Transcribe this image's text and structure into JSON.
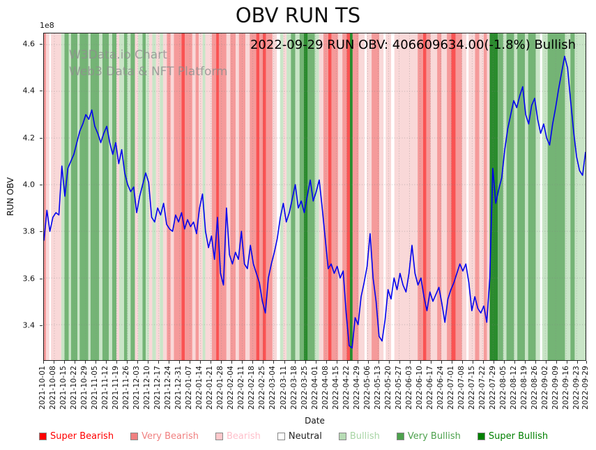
{
  "title": "OBV RUN TS",
  "annotation": "2022-09-29 RUN OBV: 406609634.00(-1.8%) Bullish",
  "watermark": {
    "line1": "W3Data.io Chart",
    "line2": "Web3 Data & NFT Platform"
  },
  "axes": {
    "y_label": "RUN OBV",
    "x_label": "Date",
    "y_offset_label": "1e8",
    "y_ticks": [
      "3.4",
      "3.6",
      "3.8",
      "4.0",
      "4.2",
      "4.4",
      "4.6"
    ],
    "x_tick_labels": [
      "2021-10-01",
      "2021-10-08",
      "2021-10-15",
      "2021-10-22",
      "2021-10-29",
      "2021-11-05",
      "2021-11-12",
      "2021-11-19",
      "2021-11-26",
      "2021-12-03",
      "2021-12-10",
      "2021-12-17",
      "2021-12-24",
      "2021-12-31",
      "2022-01-07",
      "2022-01-14",
      "2022-01-21",
      "2022-01-28",
      "2022-02-04",
      "2022-02-11",
      "2022-02-18",
      "2022-02-25",
      "2022-03-04",
      "2022-03-11",
      "2022-03-18",
      "2022-03-25",
      "2022-04-01",
      "2022-04-08",
      "2022-04-15",
      "2022-04-22",
      "2022-04-29",
      "2022-05-06",
      "2022-05-13",
      "2022-05-20",
      "2022-05-27",
      "2022-06-03",
      "2022-06-10",
      "2022-06-17",
      "2022-06-24",
      "2022-07-01",
      "2022-07-08",
      "2022-07-15",
      "2022-07-22",
      "2022-07-29",
      "2022-08-05",
      "2022-08-12",
      "2022-08-19",
      "2022-08-26",
      "2022-09-02",
      "2022-09-09",
      "2022-09-16",
      "2022-09-23",
      "2022-09-29"
    ]
  },
  "legend": {
    "items": [
      {
        "label": "Super Bearish",
        "color": "#ff0000",
        "text_color": "#ff0000"
      },
      {
        "label": "Very Bearish",
        "color": "#f08080",
        "text_color": "#f08080"
      },
      {
        "label": "Bearish",
        "color": "#ffc8cb",
        "text_color": "#ffc0cb"
      },
      {
        "label": "Neutral",
        "color": "#ffffff",
        "text_color": "#222222"
      },
      {
        "label": "Bullish",
        "color": "#b7dcb5",
        "text_color": "#a8d5a5"
      },
      {
        "label": "Very Bullish",
        "color": "#4da14d",
        "text_color": "#4da14d"
      },
      {
        "label": "Super Bullish",
        "color": "#008000",
        "text_color": "#008000"
      }
    ]
  },
  "chart_data": {
    "type": "line",
    "title": "OBV RUN TS",
    "xlabel": "Date",
    "ylabel": "RUN OBV",
    "scale_note": "values in units of 1e8",
    "x_start": "2021-10-01",
    "x_end": "2022-09-29",
    "ylim": [
      3.248,
      4.648
    ],
    "grid": true,
    "legend_position": "bottom",
    "line_color": "#0000ee",
    "current": {
      "date": "2022-09-29",
      "value": "406609634.00",
      "change_pct": "-1.8%",
      "signal": "Bullish"
    },
    "values": [
      3.76,
      3.89,
      3.8,
      3.86,
      3.88,
      3.87,
      4.08,
      3.95,
      4.07,
      4.1,
      4.13,
      4.18,
      4.23,
      4.26,
      4.3,
      4.28,
      4.32,
      4.25,
      4.22,
      4.18,
      4.22,
      4.25,
      4.18,
      4.13,
      4.18,
      4.09,
      4.15,
      4.05,
      4.0,
      3.97,
      3.99,
      3.88,
      3.95,
      4.0,
      4.05,
      4.01,
      3.86,
      3.84,
      3.9,
      3.87,
      3.92,
      3.83,
      3.81,
      3.8,
      3.87,
      3.84,
      3.88,
      3.81,
      3.85,
      3.82,
      3.84,
      3.79,
      3.9,
      3.96,
      3.8,
      3.73,
      3.78,
      3.68,
      3.86,
      3.62,
      3.57,
      3.9,
      3.7,
      3.66,
      3.71,
      3.68,
      3.8,
      3.66,
      3.64,
      3.74,
      3.66,
      3.62,
      3.58,
      3.5,
      3.45,
      3.6,
      3.66,
      3.71,
      3.77,
      3.86,
      3.92,
      3.84,
      3.88,
      3.94,
      4.0,
      3.9,
      3.93,
      3.88,
      3.95,
      4.02,
      3.93,
      3.97,
      4.02,
      3.9,
      3.77,
      3.64,
      3.66,
      3.62,
      3.65,
      3.6,
      3.63,
      3.45,
      3.31,
      3.3,
      3.43,
      3.4,
      3.52,
      3.58,
      3.65,
      3.79,
      3.6,
      3.5,
      3.35,
      3.33,
      3.42,
      3.55,
      3.51,
      3.6,
      3.55,
      3.62,
      3.57,
      3.54,
      3.62,
      3.74,
      3.62,
      3.57,
      3.6,
      3.52,
      3.46,
      3.54,
      3.5,
      3.53,
      3.56,
      3.49,
      3.41,
      3.51,
      3.55,
      3.58,
      3.62,
      3.66,
      3.63,
      3.66,
      3.58,
      3.46,
      3.52,
      3.47,
      3.45,
      3.48,
      3.41,
      3.6,
      4.07,
      3.92,
      3.98,
      4.03,
      4.15,
      4.24,
      4.3,
      4.36,
      4.33,
      4.38,
      4.42,
      4.3,
      4.26,
      4.34,
      4.37,
      4.28,
      4.22,
      4.26,
      4.2,
      4.17,
      4.26,
      4.33,
      4.41,
      4.48,
      4.55,
      4.5,
      4.36,
      4.23,
      4.12,
      4.06,
      4.04,
      4.14
    ],
    "band_colors": {
      "super_bearish": "#fa5252",
      "very_bearish": "#f59a9a",
      "bearish": "#f9d8d8",
      "neutral": "#ffffff",
      "bullish": "#c9e5c7",
      "very_bullish": "#74b475",
      "super_bullish": "#2a8b2d"
    },
    "bands": [
      [
        0.0,
        0.004,
        "very_bearish"
      ],
      [
        0.004,
        0.01,
        "bearish"
      ],
      [
        0.013,
        0.032,
        "bearish"
      ],
      [
        0.032,
        0.038,
        "bullish"
      ],
      [
        0.038,
        0.046,
        "very_bullish"
      ],
      [
        0.046,
        0.05,
        "bullish"
      ],
      [
        0.05,
        0.062,
        "very_bullish"
      ],
      [
        0.062,
        0.066,
        "bullish"
      ],
      [
        0.066,
        0.082,
        "very_bullish"
      ],
      [
        0.082,
        0.086,
        "bullish"
      ],
      [
        0.086,
        0.102,
        "very_bullish"
      ],
      [
        0.102,
        0.108,
        "bullish"
      ],
      [
        0.108,
        0.12,
        "very_bullish"
      ],
      [
        0.12,
        0.126,
        "bullish"
      ],
      [
        0.126,
        0.134,
        "very_bullish"
      ],
      [
        0.134,
        0.139,
        "bearish"
      ],
      [
        0.139,
        0.148,
        "bullish"
      ],
      [
        0.148,
        0.154,
        "very_bullish"
      ],
      [
        0.154,
        0.16,
        "bullish"
      ],
      [
        0.16,
        0.168,
        "very_bullish"
      ],
      [
        0.168,
        0.174,
        "bearish"
      ],
      [
        0.174,
        0.182,
        "bullish"
      ],
      [
        0.182,
        0.188,
        "very_bullish"
      ],
      [
        0.188,
        0.194,
        "bullish"
      ],
      [
        0.194,
        0.2,
        "bearish"
      ],
      [
        0.2,
        0.207,
        "bullish"
      ],
      [
        0.207,
        0.214,
        "bearish"
      ],
      [
        0.214,
        0.22,
        "bullish"
      ],
      [
        0.22,
        0.227,
        "bearish"
      ],
      [
        0.227,
        0.234,
        "very_bearish"
      ],
      [
        0.234,
        0.24,
        "bearish"
      ],
      [
        0.24,
        0.254,
        "very_bearish"
      ],
      [
        0.254,
        0.26,
        "super_bearish"
      ],
      [
        0.26,
        0.274,
        "very_bearish"
      ],
      [
        0.274,
        0.28,
        "bearish"
      ],
      [
        0.28,
        0.286,
        "very_bearish"
      ],
      [
        0.286,
        0.293,
        "bearish"
      ],
      [
        0.293,
        0.298,
        "bullish"
      ],
      [
        0.298,
        0.31,
        "bearish"
      ],
      [
        0.31,
        0.318,
        "very_bearish"
      ],
      [
        0.318,
        0.323,
        "super_bearish"
      ],
      [
        0.323,
        0.337,
        "very_bearish"
      ],
      [
        0.337,
        0.344,
        "bearish"
      ],
      [
        0.344,
        0.354,
        "very_bearish"
      ],
      [
        0.354,
        0.36,
        "bearish"
      ],
      [
        0.36,
        0.372,
        "very_bearish"
      ],
      [
        0.372,
        0.38,
        "bearish"
      ],
      [
        0.38,
        0.392,
        "very_bearish"
      ],
      [
        0.392,
        0.398,
        "super_bearish"
      ],
      [
        0.398,
        0.404,
        "very_bearish"
      ],
      [
        0.404,
        0.41,
        "super_bearish"
      ],
      [
        0.41,
        0.422,
        "very_bearish"
      ],
      [
        0.422,
        0.43,
        "bearish"
      ],
      [
        0.436,
        0.442,
        "bullish"
      ],
      [
        0.442,
        0.448,
        "bearish"
      ],
      [
        0.448,
        0.456,
        "bullish"
      ],
      [
        0.456,
        0.464,
        "very_bullish"
      ],
      [
        0.464,
        0.472,
        "bullish"
      ],
      [
        0.472,
        0.48,
        "very_bullish"
      ],
      [
        0.48,
        0.487,
        "super_bullish"
      ],
      [
        0.487,
        0.5,
        "very_bullish"
      ],
      [
        0.5,
        0.508,
        "bullish"
      ],
      [
        0.508,
        0.516,
        "bearish"
      ],
      [
        0.516,
        0.525,
        "very_bearish"
      ],
      [
        0.525,
        0.531,
        "super_bearish"
      ],
      [
        0.531,
        0.543,
        "very_bearish"
      ],
      [
        0.543,
        0.551,
        "bearish"
      ],
      [
        0.551,
        0.559,
        "very_bearish"
      ],
      [
        0.559,
        0.565,
        "super_bearish"
      ],
      [
        0.565,
        0.57,
        "super_bullish"
      ],
      [
        0.57,
        0.581,
        "very_bearish"
      ],
      [
        0.581,
        0.592,
        "bearish"
      ],
      [
        0.596,
        0.605,
        "bearish"
      ],
      [
        0.605,
        0.619,
        "very_bearish"
      ],
      [
        0.619,
        0.627,
        "bearish"
      ],
      [
        0.631,
        0.641,
        "bearish"
      ],
      [
        0.647,
        0.69,
        "bearish"
      ],
      [
        0.69,
        0.7,
        "very_bearish"
      ],
      [
        0.7,
        0.706,
        "super_bearish"
      ],
      [
        0.706,
        0.714,
        "very_bearish"
      ],
      [
        0.714,
        0.726,
        "bearish"
      ],
      [
        0.726,
        0.734,
        "very_bearish"
      ],
      [
        0.734,
        0.744,
        "bearish"
      ],
      [
        0.744,
        0.752,
        "very_bearish"
      ],
      [
        0.752,
        0.76,
        "super_bearish"
      ],
      [
        0.76,
        0.772,
        "very_bearish"
      ],
      [
        0.772,
        0.78,
        "bearish"
      ],
      [
        0.784,
        0.796,
        "bearish"
      ],
      [
        0.796,
        0.804,
        "very_bearish"
      ],
      [
        0.804,
        0.812,
        "bearish"
      ],
      [
        0.812,
        0.818,
        "very_bearish"
      ],
      [
        0.818,
        0.823,
        "bearish"
      ],
      [
        0.823,
        0.838,
        "super_bullish"
      ],
      [
        0.838,
        0.848,
        "very_bullish"
      ],
      [
        0.848,
        0.854,
        "bullish"
      ],
      [
        0.854,
        0.868,
        "very_bullish"
      ],
      [
        0.868,
        0.874,
        "bullish"
      ],
      [
        0.874,
        0.888,
        "very_bullish"
      ],
      [
        0.888,
        0.894,
        "bullish"
      ],
      [
        0.894,
        0.908,
        "very_bullish"
      ],
      [
        0.908,
        0.916,
        "bullish"
      ],
      [
        0.92,
        0.93,
        "bullish"
      ],
      [
        0.93,
        0.962,
        "very_bullish"
      ],
      [
        0.962,
        0.972,
        "bullish"
      ],
      [
        0.972,
        0.98,
        "very_bullish"
      ],
      [
        0.98,
        1.0,
        "bullish"
      ]
    ]
  }
}
